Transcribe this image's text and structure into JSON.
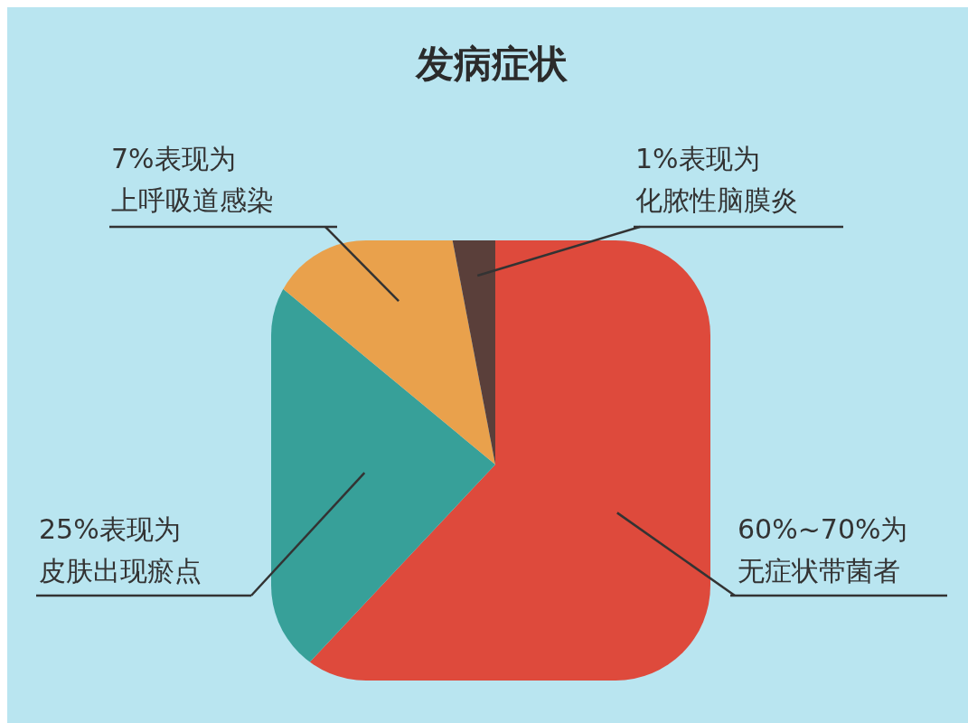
{
  "chart_data": {
    "type": "pie",
    "title": "发病症状",
    "categories": [
      "60%~70%为无症状带菌者",
      "25%表现为皮肤出现瘀点",
      "7%表现为上呼吸道感染",
      "1%表现为化脓性脑膜炎"
    ],
    "values": [
      62,
      24,
      11,
      3
    ],
    "colors": [
      "#de4a3c",
      "#37a099",
      "#e9a14c",
      "#5a3f3a"
    ]
  }
}
